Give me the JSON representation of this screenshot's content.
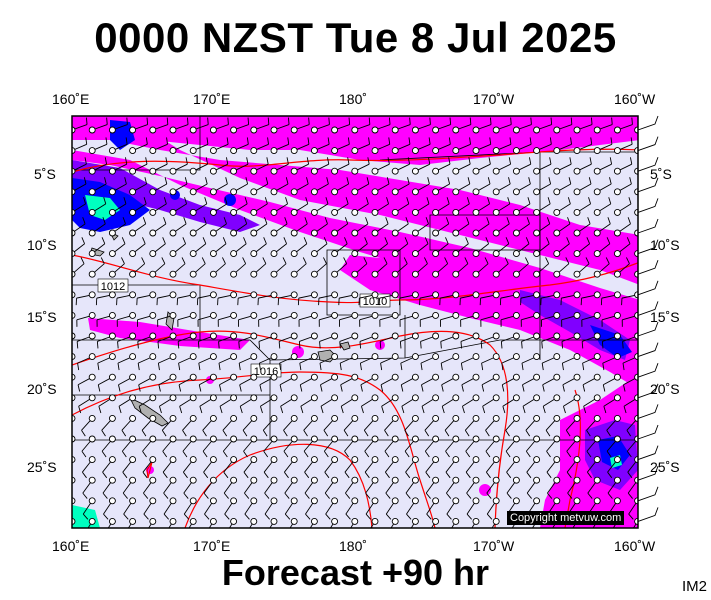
{
  "title": "0000 NZST Tue 8 Jul 2025",
  "footer": "Forecast +90 hr",
  "code": "IM2",
  "copyright": "Copyright metvuw.com",
  "lon_labels": [
    "160˚E",
    "170˚E",
    "180˚",
    "170˚W",
    "160˚W"
  ],
  "lat_labels": [
    "5˚S",
    "10˚S",
    "15˚S",
    "20˚S",
    "25˚S"
  ],
  "isobars": [
    "1012",
    "1010",
    "1016"
  ],
  "colors": {
    "background": "#e6e6fa",
    "rain_light": "#ff00ff",
    "rain_mid": "#8000ff",
    "rain_heavy": "#0000ff",
    "rain_extreme": "#00ffc0",
    "isobar": "#ff0000",
    "border": "#000000"
  }
}
